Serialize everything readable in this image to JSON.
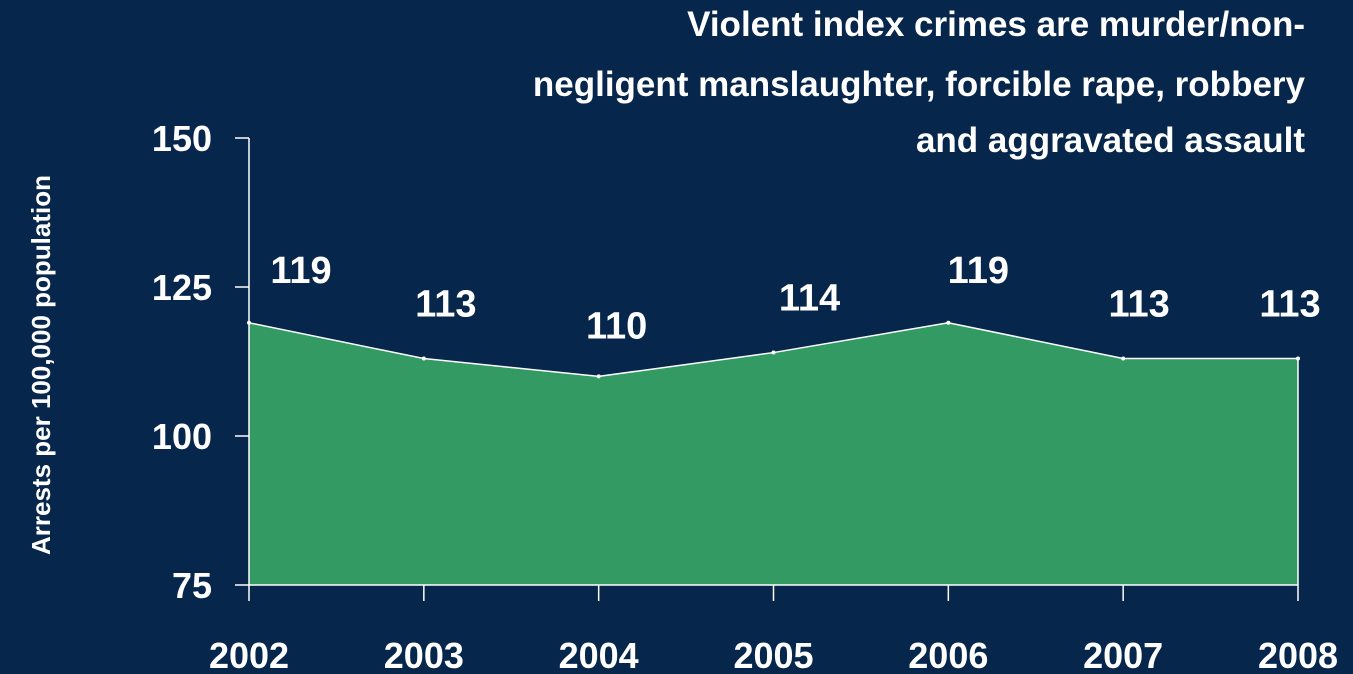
{
  "chart_data": {
    "type": "area",
    "title": "Violent index crimes are murder/non-negligent manslaughter, forcible rape, robbery and aggravated assault",
    "title_lines": [
      "Violent index crimes are murder/non-",
      "negligent manslaughter, forcible rape, robbery",
      "and aggravated assault"
    ],
    "ylabel": "Arrests per 100,000 population",
    "xlabel": "",
    "categories": [
      "2002",
      "2003",
      "2004",
      "2005",
      "2006",
      "2007",
      "2008"
    ],
    "series": [
      {
        "values": [
          119,
          113,
          110,
          114,
          119,
          113,
          113
        ],
        "data_labels": [
          "119",
          "113",
          "110",
          "114",
          "119",
          "113",
          "113"
        ]
      }
    ],
    "ylim": [
      75,
      150
    ],
    "yticks": [
      75,
      100,
      125,
      150
    ],
    "ytick_labels": [
      "75",
      "100",
      "125",
      "150"
    ],
    "grid": false,
    "legend": "none",
    "colors": {
      "background": "#07264c",
      "area_fill": "#349a63",
      "area_outline": "#ffffff",
      "axis": "#ffffff",
      "text": "#ffffff"
    }
  }
}
